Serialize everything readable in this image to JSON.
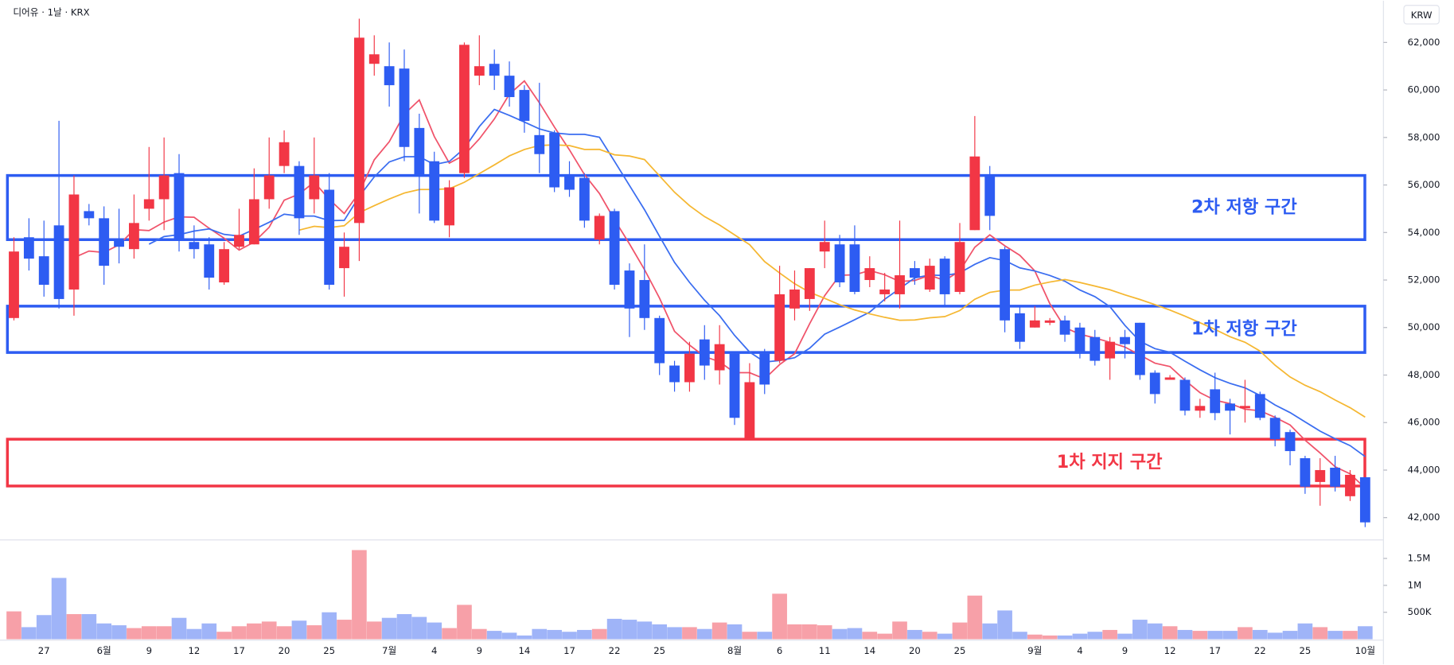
{
  "chart_data": {
    "type": "candlestick",
    "title": "디어유 · 1날 · KRX",
    "currency": "KRW",
    "up_color": "#f23645",
    "down_color": "#2d5cf2",
    "volume_up_color": "#f7a0a8",
    "volume_down_color": "#9fb4f8",
    "categories": [
      null,
      null,
      "27",
      null,
      null,
      null,
      "6월",
      null,
      null,
      "9",
      null,
      null,
      "12",
      null,
      null,
      "17",
      null,
      null,
      "20",
      null,
      null,
      "25",
      null,
      null,
      null,
      "7월",
      null,
      null,
      "4",
      null,
      null,
      "9",
      null,
      null,
      "14",
      null,
      null,
      "17",
      null,
      null,
      "22",
      null,
      null,
      "25",
      null,
      null,
      null,
      null,
      "8월",
      null,
      null,
      "6",
      null,
      null,
      "11",
      null,
      null,
      "14",
      null,
      null,
      "20",
      null,
      null,
      "25",
      null,
      null,
      null,
      null,
      "9월",
      null,
      null,
      "4",
      null,
      null,
      "9",
      null,
      null,
      "12",
      null,
      null,
      "17",
      null,
      null,
      "22",
      null,
      null,
      "25",
      null,
      null,
      null,
      "10월"
    ],
    "open": [
      50400,
      53800,
      53000,
      54300,
      51600,
      54900,
      54600,
      53700,
      53300,
      55000,
      55400,
      56500,
      53600,
      53500,
      51900,
      53400,
      53500,
      55400,
      56800,
      56800,
      55400,
      55800,
      52500,
      54400,
      61100,
      61000,
      60900,
      58400,
      57000,
      54300,
      56500,
      60600,
      61100,
      60600,
      60000,
      58100,
      58200,
      56400,
      56300,
      53700,
      54900,
      52400,
      52000,
      50400,
      48400,
      47700,
      49500,
      48200,
      48900,
      45300,
      48900,
      48600,
      50800,
      51200,
      53200,
      53500,
      53500,
      52000,
      51400,
      51400,
      52500,
      51600,
      52900,
      51500,
      54100,
      56400,
      53300,
      50600,
      50000,
      50200,
      50300,
      50000,
      49600,
      48700,
      49600,
      50200,
      48100,
      47800,
      47800,
      46500,
      47400,
      46800,
      46600,
      47200,
      46200,
      45600,
      44500,
      43500,
      44100,
      42900,
      43700
    ],
    "high": [
      53800,
      54600,
      54500,
      58700,
      56400,
      55200,
      55100,
      55000,
      55600,
      57600,
      58000,
      57300,
      54300,
      53800,
      53600,
      55000,
      56700,
      58000,
      58300,
      57000,
      58000,
      56500,
      54000,
      63000,
      62300,
      62000,
      61700,
      59000,
      57400,
      56200,
      62000,
      62300,
      61700,
      61200,
      60200,
      60300,
      58300,
      57000,
      56500,
      54800,
      55000,
      52700,
      53500,
      50500,
      48600,
      49400,
      50100,
      50100,
      49000,
      48500,
      49100,
      52600,
      52400,
      52500,
      54500,
      53900,
      54300,
      53000,
      52300,
      54500,
      52800,
      52900,
      53000,
      54400,
      58900,
      56800,
      53400,
      50900,
      50900,
      50400,
      50500,
      50200,
      49900,
      49600,
      49900,
      50200,
      48200,
      48000,
      47900,
      47000,
      48100,
      47000,
      47800,
      47300,
      46300,
      45700,
      44600,
      44500,
      44600,
      44000,
      43700
    ],
    "low": [
      50300,
      52400,
      51300,
      50800,
      50500,
      54300,
      51800,
      52700,
      52900,
      54500,
      54100,
      53200,
      52900,
      51600,
      51800,
      53300,
      53500,
      55000,
      56500,
      53900,
      54800,
      51600,
      51300,
      52800,
      60600,
      59300,
      57000,
      54800,
      54400,
      53800,
      56300,
      60200,
      60000,
      59300,
      58200,
      56500,
      55700,
      55500,
      54200,
      53500,
      51600,
      49600,
      49900,
      48000,
      47300,
      47300,
      47800,
      47600,
      45900,
      45300,
      47200,
      48500,
      50300,
      50700,
      52500,
      51700,
      51400,
      51700,
      51100,
      50800,
      51800,
      51500,
      50900,
      51400,
      54100,
      54100,
      49800,
      49100,
      50000,
      50100,
      49400,
      48700,
      48400,
      47800,
      48700,
      47800,
      46800,
      47800,
      46300,
      46200,
      46100,
      45500,
      46000,
      46100,
      45000,
      44200,
      43000,
      42500,
      43100,
      42700,
      41600
    ],
    "close": [
      53200,
      52900,
      51800,
      51200,
      55600,
      54600,
      52600,
      53400,
      54400,
      55400,
      56400,
      53700,
      53300,
      52100,
      53300,
      53900,
      55400,
      56400,
      57800,
      54600,
      56400,
      51800,
      53400,
      62200,
      61500,
      60200,
      57600,
      56400,
      54500,
      55900,
      61900,
      61000,
      60600,
      59700,
      58700,
      57300,
      55900,
      55800,
      54500,
      54700,
      51800,
      50800,
      50400,
      48500,
      47700,
      48900,
      48400,
      49300,
      46200,
      47700,
      47600,
      51400,
      51600,
      52500,
      53600,
      51900,
      51500,
      52500,
      51600,
      52200,
      52100,
      52600,
      51400,
      53600,
      57200,
      54700,
      50300,
      49400,
      50300,
      50300,
      49700,
      48900,
      48600,
      49400,
      49300,
      48000,
      47200,
      47900,
      46500,
      46700,
      46400,
      46500,
      46700,
      46200,
      45300,
      44800,
      43300,
      44000,
      43300,
      43800,
      41800
    ],
    "volume": [
      517000,
      224000,
      448000,
      1138000,
      466000,
      466000,
      293000,
      259000,
      207000,
      241000,
      241000,
      397000,
      190000,
      293000,
      138000,
      241000,
      293000,
      328000,
      241000,
      345000,
      259000,
      500000,
      362000,
      1655000,
      328000,
      397000,
      466000,
      414000,
      310000,
      207000,
      638000,
      190000,
      155000,
      121000,
      69000,
      190000,
      172000,
      138000,
      172000,
      190000,
      379000,
      362000,
      328000,
      276000,
      224000,
      224000,
      190000,
      310000,
      276000,
      138000,
      138000,
      845000,
      276000,
      276000,
      259000,
      190000,
      207000,
      138000,
      103000,
      328000,
      172000,
      138000,
      103000,
      310000,
      810000,
      293000,
      534000,
      138000,
      86000,
      69000,
      69000,
      103000,
      138000,
      172000,
      103000,
      362000,
      293000,
      241000,
      172000,
      155000,
      155000,
      155000,
      224000,
      172000,
      121000,
      155000,
      293000,
      224000,
      155000,
      155000,
      241000
    ],
    "ylim": [
      41100,
      63560
    ],
    "yticks": [
      {
        "value": 42000,
        "label": "42,000"
      },
      {
        "value": 44000,
        "label": "44,000"
      },
      {
        "value": 46000,
        "label": "46,000"
      },
      {
        "value": 48000,
        "label": "48,000"
      },
      {
        "value": 50000,
        "label": "50,000"
      },
      {
        "value": 52000,
        "label": "52,000"
      },
      {
        "value": 54000,
        "label": "54,000"
      },
      {
        "value": 56000,
        "label": "56,000"
      },
      {
        "value": 58000,
        "label": "58,000"
      },
      {
        "value": 60000,
        "label": "60,000"
      },
      {
        "value": 62000,
        "label": "62,000"
      }
    ],
    "volume_ylim": [
      0,
      1775000
    ],
    "volume_yticks": [
      {
        "value": 500000,
        "label": "500K"
      },
      {
        "value": 1000000,
        "label": "1M"
      },
      {
        "value": 1500000,
        "label": "1.5M"
      }
    ],
    "zones": [
      {
        "label": "2차 저항 구간",
        "range": [
          53700,
          56400
        ],
        "color": "#2d5cf2"
      },
      {
        "label": "1차 저항 구간",
        "range": [
          48950,
          50900
        ],
        "color": "#2d5cf2"
      },
      {
        "label": "1차 지지 구간",
        "range": [
          43330,
          45300
        ],
        "color": "#f23645"
      }
    ]
  }
}
